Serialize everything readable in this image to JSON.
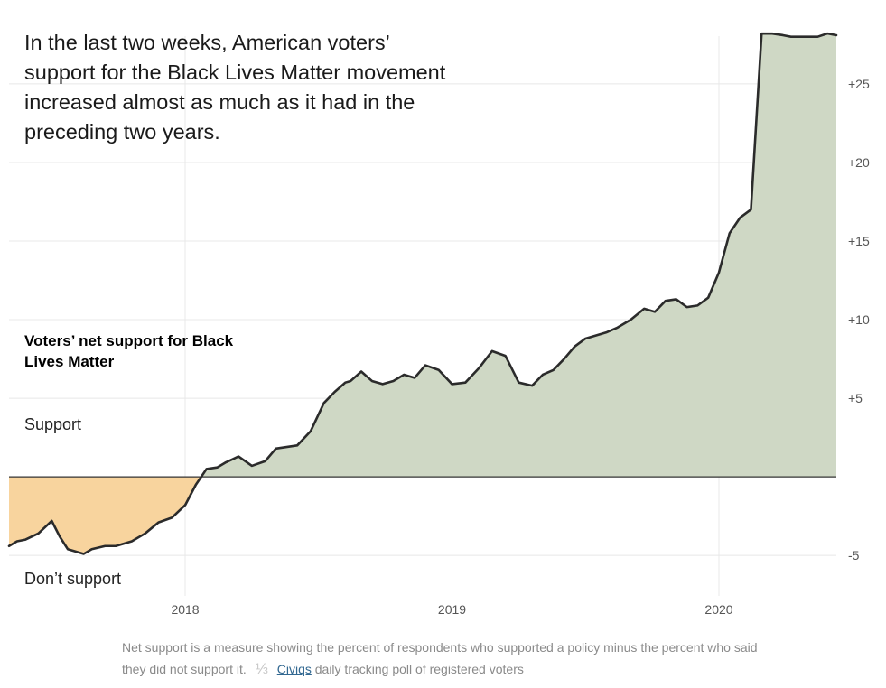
{
  "headline": "In the last two weeks, American voters’ support for the Black Lives Matter movement increased almost as much as it had in the preceding two years.",
  "labels": {
    "support": "Support",
    "dont_support": "Don’t support"
  },
  "colors": {
    "positive_fill": "#cfd8c5",
    "negative_fill": "#f8d49e",
    "line": "#2b2b2b",
    "grid": "#e8e8e8",
    "zero_line": "#333333"
  },
  "footer": {
    "note": "Net support is a measure showing the percent of respondents who supported a policy minus the percent who said they did not support it.",
    "separator": "⅓",
    "source_link": "Civiqs",
    "source_rest": "daily tracking poll of registered voters"
  },
  "chart_data": {
    "type": "area",
    "title": "Voters’ net support for Black Lives Matter",
    "xlabel": "",
    "ylabel": "",
    "ylim": [
      -7,
      28.5
    ],
    "xlim": [
      2017.34,
      2020.44
    ],
    "grid": true,
    "x_ticks": [
      {
        "value": 2018,
        "label": "2018"
      },
      {
        "value": 2019,
        "label": "2019"
      },
      {
        "value": 2020,
        "label": "2020"
      }
    ],
    "y_ticks": [
      {
        "value": -5,
        "label": "-5"
      },
      {
        "value": 5,
        "label": "+5"
      },
      {
        "value": 10,
        "label": "+10"
      },
      {
        "value": 15,
        "label": "+15"
      },
      {
        "value": 20,
        "label": "+20"
      },
      {
        "value": 25,
        "label": "+25"
      }
    ],
    "series": [
      {
        "x": [
          2017.34,
          2017.37,
          2017.4,
          2017.45,
          2017.5,
          2017.53,
          2017.56,
          2017.58,
          2017.62,
          2017.65,
          2017.7,
          2017.74,
          2017.8,
          2017.85,
          2017.9,
          2017.95,
          2018.0,
          2018.04,
          2018.08,
          2018.12,
          2018.15,
          2018.2,
          2018.25,
          2018.3,
          2018.34,
          2018.38,
          2018.42,
          2018.47,
          2018.52,
          2018.56,
          2018.6,
          2018.62,
          2018.66,
          2018.7,
          2018.74,
          2018.78,
          2018.82,
          2018.86,
          2018.9,
          2018.95,
          2019.0,
          2019.05,
          2019.1,
          2019.15,
          2019.2,
          2019.25,
          2019.3,
          2019.34,
          2019.38,
          2019.42,
          2019.46,
          2019.5,
          2019.54,
          2019.58,
          2019.62,
          2019.67,
          2019.72,
          2019.76,
          2019.8,
          2019.84,
          2019.88,
          2019.92,
          2019.96,
          2020.0,
          2020.04,
          2020.08,
          2020.12,
          2020.16,
          2020.2,
          2020.24,
          2020.27,
          2020.3,
          2020.34,
          2020.37,
          2020.405,
          2020.41,
          2020.44
        ],
        "values": [
          -4.4,
          -4.1,
          -4.0,
          -3.6,
          -2.8,
          -3.8,
          -4.6,
          -4.7,
          -4.9,
          -4.6,
          -4.4,
          -4.4,
          -4.1,
          -3.6,
          -2.9,
          -2.6,
          -1.8,
          -0.5,
          0.5,
          0.6,
          0.9,
          1.3,
          0.7,
          1.0,
          1.8,
          1.9,
          2.0,
          2.9,
          4.7,
          5.4,
          6.0,
          6.1,
          6.7,
          6.1,
          5.9,
          6.1,
          6.5,
          6.3,
          7.1,
          6.8,
          5.9,
          6.0,
          6.9,
          8.0,
          7.7,
          6.0,
          5.8,
          6.5,
          6.8,
          7.5,
          8.3,
          8.8,
          9.0,
          9.2,
          9.5,
          10.0,
          10.7,
          10.5,
          11.2,
          11.3,
          10.8,
          10.9,
          11.4,
          13.0,
          15.5,
          16.5,
          17.0,
          28.2,
          28.2,
          28.1,
          28.0,
          28.0,
          28.0,
          28.0,
          28.2,
          28.2,
          28.1
        ]
      }
    ]
  }
}
